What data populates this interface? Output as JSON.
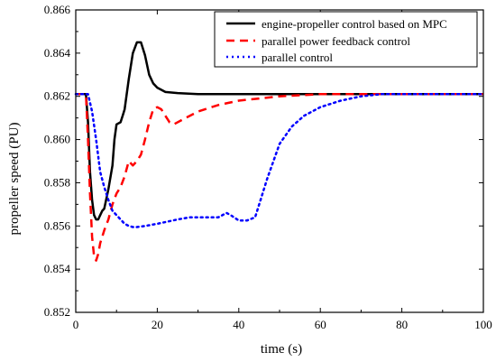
{
  "chart_data": {
    "type": "line",
    "xlabel": "time (s)",
    "ylabel": "propeller speed (PU)",
    "xlim": [
      0,
      100
    ],
    "ylim": [
      0.852,
      0.866
    ],
    "xticks": [
      "0",
      "20",
      "40",
      "60",
      "80",
      "100"
    ],
    "yticks": [
      "0.852",
      "0.854",
      "0.856",
      "0.858",
      "0.860",
      "0.862",
      "0.864",
      "0.866"
    ],
    "grid": false,
    "legend_position": "top-right",
    "series": [
      {
        "name": "engine-propeller control based on MPC",
        "color": "#000000",
        "style": "solid",
        "x": [
          0,
          2.5,
          3,
          3.5,
          4,
          4.5,
          5,
          5.5,
          6,
          6.5,
          7,
          8,
          9,
          9.5,
          10,
          11,
          11.5,
          12,
          13,
          14,
          15,
          16,
          17,
          18,
          19,
          20,
          22,
          25,
          30,
          40,
          60,
          100
        ],
        "y": [
          0.8621,
          0.8621,
          0.8608,
          0.8585,
          0.8572,
          0.8565,
          0.8563,
          0.8563,
          0.8565,
          0.8567,
          0.8568,
          0.8577,
          0.8588,
          0.86,
          0.8607,
          0.8608,
          0.8611,
          0.8614,
          0.8628,
          0.864,
          0.8645,
          0.8645,
          0.8639,
          0.863,
          0.8626,
          0.8624,
          0.8622,
          0.86215,
          0.8621,
          0.8621,
          0.8621,
          0.8621
        ]
      },
      {
        "name": "parallel power feedback control",
        "color": "#ff0000",
        "style": "dashed",
        "x": [
          0,
          2.5,
          3,
          3.5,
          4,
          4.5,
          5,
          5.5,
          6,
          7,
          8,
          9,
          10,
          11,
          12,
          13,
          14,
          15,
          16,
          17,
          18,
          19,
          20,
          21,
          22,
          23,
          24,
          26,
          30,
          35,
          40,
          50,
          60,
          100
        ],
        "y": [
          0.8621,
          0.8621,
          0.86,
          0.8575,
          0.8555,
          0.8546,
          0.8544,
          0.8547,
          0.8552,
          0.8558,
          0.8563,
          0.857,
          0.8575,
          0.8578,
          0.8583,
          0.859,
          0.8588,
          0.859,
          0.8593,
          0.86,
          0.8608,
          0.8614,
          0.8615,
          0.8614,
          0.8611,
          0.8608,
          0.8607,
          0.8609,
          0.8613,
          0.8616,
          0.8618,
          0.862,
          0.8621,
          0.8621
        ]
      },
      {
        "name": "parallel control",
        "color": "#0000ff",
        "style": "dotted",
        "x": [
          0,
          3,
          4,
          5,
          6,
          7,
          8,
          9,
          10,
          11,
          12,
          13,
          14,
          15,
          17,
          20,
          25,
          28,
          30,
          33,
          35,
          37,
          38,
          40,
          42,
          44,
          45,
          47,
          50,
          53,
          56,
          60,
          65,
          70,
          75,
          80,
          100
        ],
        "y": [
          0.8621,
          0.8621,
          0.8613,
          0.86,
          0.8585,
          0.8578,
          0.8572,
          0.8567,
          0.8565,
          0.8563,
          0.8561,
          0.856,
          0.85595,
          0.85595,
          0.856,
          0.8561,
          0.8563,
          0.8564,
          0.8564,
          0.8564,
          0.8564,
          0.8566,
          0.8565,
          0.85625,
          0.85625,
          0.8564,
          0.857,
          0.8582,
          0.8598,
          0.8606,
          0.8611,
          0.8615,
          0.8618,
          0.862,
          0.8621,
          0.8621,
          0.8621
        ]
      }
    ]
  }
}
